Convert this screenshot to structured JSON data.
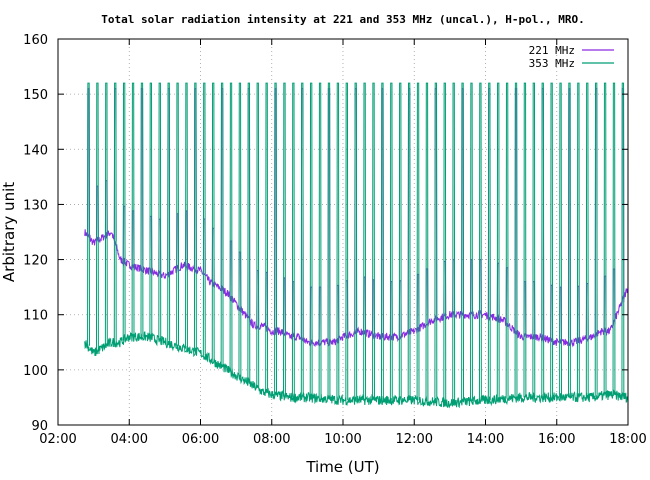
{
  "colors": {
    "mhz221": "#8a2be2",
    "mhz353": "#009e73",
    "grid": "#a0a0a0",
    "axis": "#000000"
  },
  "chart_data": {
    "type": "line",
    "title": "Total solar radiation intensity at 221 and 353 MHz (uncal.), H-pol., MRO.",
    "xlabel": "Time (UT)",
    "ylabel": "Arbitrary unit",
    "xlim": [
      2.0,
      18.0
    ],
    "ylim": [
      90,
      160
    ],
    "xticks": [
      "02:00",
      "04:00",
      "06:00",
      "08:00",
      "10:00",
      "12:00",
      "14:00",
      "16:00",
      "18:00"
    ],
    "yticks": [
      90,
      100,
      110,
      120,
      130,
      140,
      150,
      160
    ],
    "grid": true,
    "legend_position": "top-right",
    "calibration_spikes": {
      "interval_minutes": 15,
      "first_hour": 2.83,
      "last_hour": 17.83,
      "mhz221_top": 151,
      "mhz353_top": 152
    },
    "series": [
      {
        "name": "221 MHz",
        "color": "#8a2be2",
        "x": [
          2.75,
          3.0,
          3.25,
          3.5,
          3.75,
          4.0,
          4.5,
          5.0,
          5.5,
          6.0,
          6.25,
          6.5,
          6.75,
          7.0,
          7.25,
          7.5,
          7.75,
          8.0,
          8.25,
          8.5,
          8.75,
          9.0,
          9.25,
          9.5,
          9.75,
          10.0,
          10.5,
          11.0,
          11.5,
          12.0,
          12.5,
          13.0,
          13.5,
          14.0,
          14.5,
          15.0,
          15.5,
          16.0,
          16.5,
          17.0,
          17.25,
          17.5,
          17.75,
          18.0
        ],
        "y": [
          125,
          123,
          124,
          125,
          120,
          119,
          118,
          117,
          119,
          118,
          116,
          115,
          114,
          112,
          110,
          108,
          108,
          107,
          107,
          106,
          106,
          105,
          105,
          105,
          105,
          106,
          107,
          106,
          106,
          107,
          109,
          110,
          110,
          110,
          109,
          106,
          106,
          105,
          105,
          106,
          107,
          107,
          111,
          115
        ]
      },
      {
        "name": "353 MHz",
        "color": "#009e73",
        "x": [
          2.75,
          3.0,
          3.25,
          3.5,
          3.75,
          4.0,
          4.5,
          5.0,
          5.5,
          6.0,
          6.25,
          6.5,
          6.75,
          7.0,
          7.25,
          7.5,
          7.75,
          8.0,
          8.5,
          9.0,
          10.0,
          11.0,
          12.0,
          13.0,
          14.0,
          15.0,
          16.0,
          17.0,
          17.5,
          18.0
        ],
        "y": [
          105,
          103,
          104,
          105,
          105,
          106,
          106,
          105,
          104,
          103,
          102,
          101,
          100,
          99,
          98,
          97,
          96,
          95.5,
          95,
          95,
          94.5,
          94.5,
          94.5,
          94,
          94.5,
          95,
          95,
          95,
          95.5,
          95
        ]
      }
    ]
  }
}
